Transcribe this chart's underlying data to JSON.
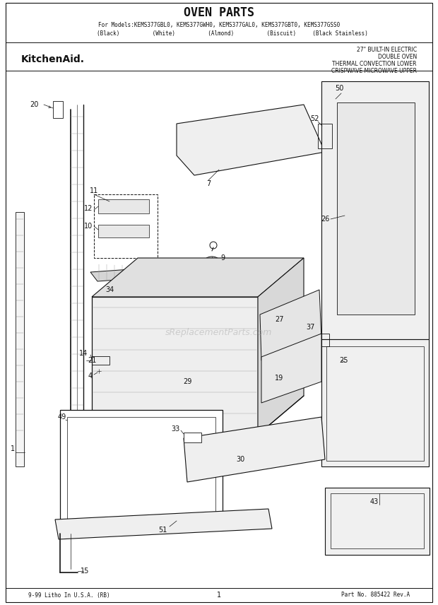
{
  "title": "OVEN PARTS",
  "model_line1": "For Models:KEMS377GBL0, KEMS377GWH0, KEMS377GAL0, KEMS377GBT0, KEMS377GSS0",
  "model_line2": "        (Black)          (White)          (Almond)          (Biscuit)     (Black Stainless)",
  "brand": "KitchenAid.",
  "subtitle_lines": [
    "27\" BUILT-IN ELECTRIC",
    "DOUBLE OVEN",
    "THERMAL CONVECTION LOWER",
    "CRISPWAVE MICROWAVE UPPER"
  ],
  "footer_left": "9-99 Litho In U.S.A. (RB)",
  "footer_center": "1",
  "footer_right": "Part No. 885422 Rev.A",
  "watermark": "sReplacementParts.com",
  "bg_color": "#ffffff",
  "line_color": "#111111",
  "fig_width": 6.2,
  "fig_height": 8.56,
  "dpi": 100
}
